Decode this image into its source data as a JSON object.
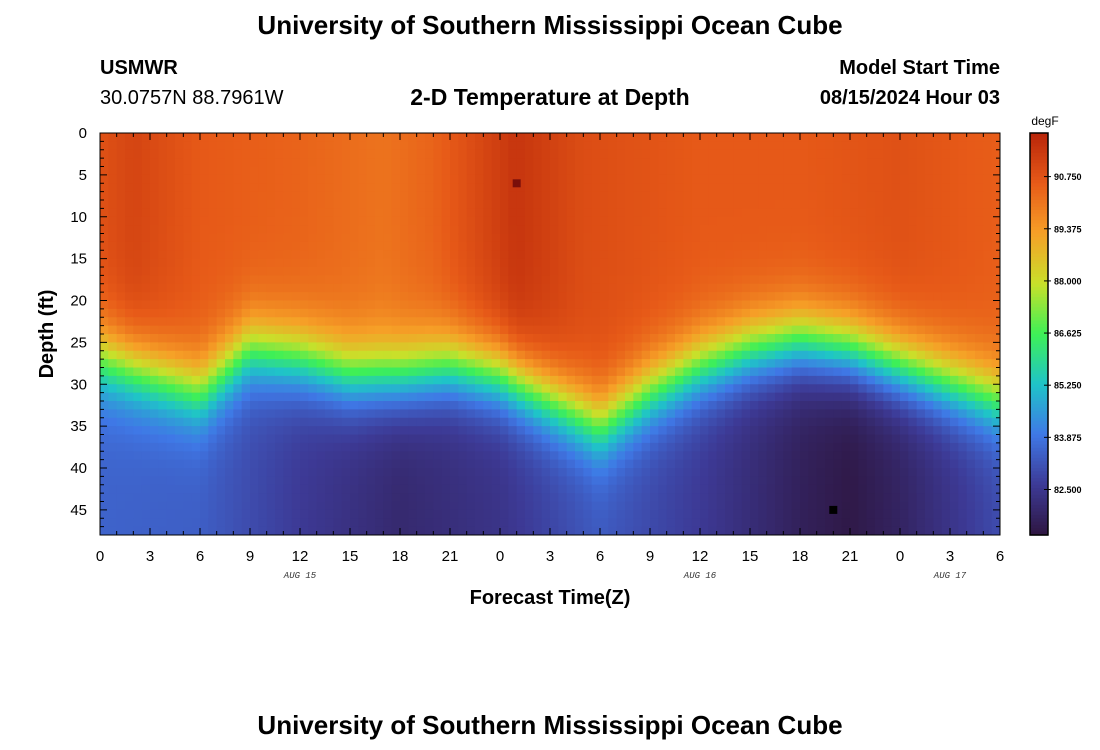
{
  "page": {
    "title_top": "University of Southern Mississippi Ocean Cube",
    "title_bottom": "University of Southern Mississippi Ocean Cube",
    "station": "USMWR",
    "coords": "30.0757N  88.7961W",
    "plot_title": "2-D Temperature at Depth",
    "model_start_label": "Model Start Time",
    "model_start_value": "08/15/2024 Hour 03"
  },
  "colors": {
    "text": "#000000",
    "background": "#ffffff"
  },
  "chart_data": {
    "type": "heatmap",
    "title": "2-D Temperature at Depth",
    "xlabel": "Forecast Time(Z)",
    "ylabel": "Depth (ft)",
    "x_ticks": [
      "0",
      "3",
      "6",
      "9",
      "12",
      "15",
      "18",
      "21",
      "0",
      "3",
      "6",
      "9",
      "12",
      "15",
      "18",
      "21",
      "0",
      "3",
      "6"
    ],
    "x_range_hours": [
      0,
      54
    ],
    "date_labels": [
      {
        "text": "AUG 15",
        "hour": 12
      },
      {
        "text": "AUG 16",
        "hour": 36
      },
      {
        "text": "AUG 17",
        "hour": 51
      }
    ],
    "y_ticks": [
      "0",
      "5",
      "10",
      "15",
      "20",
      "25",
      "30",
      "35",
      "40",
      "45"
    ],
    "y_range_ft": [
      0,
      48
    ],
    "colorbar": {
      "unit": "degF",
      "ticks": [
        "90.750",
        "89.375",
        "88.000",
        "86.625",
        "85.250",
        "83.875",
        "82.500"
      ],
      "range": [
        81.3,
        91.9
      ],
      "colors": [
        "#2e1641",
        "#3d3a96",
        "#3f78e6",
        "#1fc4c8",
        "#3ef056",
        "#c9e02a",
        "#f6a027",
        "#e75a18",
        "#b8250a"
      ]
    },
    "thermocline_depth_ft": [
      {
        "hour": 0,
        "depth": 27
      },
      {
        "hour": 3,
        "depth": 29
      },
      {
        "hour": 6,
        "depth": 31
      },
      {
        "hour": 9,
        "depth": 26
      },
      {
        "hour": 12,
        "depth": 27
      },
      {
        "hour": 15,
        "depth": 29
      },
      {
        "hour": 18,
        "depth": 29
      },
      {
        "hour": 21,
        "depth": 28
      },
      {
        "hour": 24,
        "depth": 29
      },
      {
        "hour": 27,
        "depth": 32
      },
      {
        "hour": 30,
        "depth": 35
      },
      {
        "hour": 33,
        "depth": 31
      },
      {
        "hour": 36,
        "depth": 28
      },
      {
        "hour": 39,
        "depth": 26
      },
      {
        "hour": 42,
        "depth": 25
      },
      {
        "hour": 45,
        "depth": 26
      },
      {
        "hour": 48,
        "depth": 28
      },
      {
        "hour": 51,
        "depth": 30
      },
      {
        "hour": 54,
        "depth": 32
      }
    ],
    "surface_temp_degF": [
      {
        "hour": 0,
        "temp": 90.8
      },
      {
        "hour": 2,
        "temp": 91.1
      },
      {
        "hour": 6,
        "temp": 90.6
      },
      {
        "hour": 12,
        "temp": 90.4
      },
      {
        "hour": 17,
        "temp": 90.1
      },
      {
        "hour": 20,
        "temp": 90.4
      },
      {
        "hour": 25,
        "temp": 91.5
      },
      {
        "hour": 29,
        "temp": 90.9
      },
      {
        "hour": 36,
        "temp": 90.6
      },
      {
        "hour": 42,
        "temp": 90.6
      },
      {
        "hour": 48,
        "temp": 90.8
      },
      {
        "hour": 54,
        "temp": 90.5
      }
    ],
    "bottom_temp_degF": [
      {
        "hour": 0,
        "temp": 83.5
      },
      {
        "hour": 6,
        "temp": 83.4
      },
      {
        "hour": 12,
        "temp": 82.6
      },
      {
        "hour": 18,
        "temp": 82.0
      },
      {
        "hour": 24,
        "temp": 82.4
      },
      {
        "hour": 30,
        "temp": 83.3
      },
      {
        "hour": 36,
        "temp": 82.6
      },
      {
        "hour": 42,
        "temp": 81.7
      },
      {
        "hour": 45,
        "temp": 81.4
      },
      {
        "hour": 48,
        "temp": 81.8
      },
      {
        "hour": 54,
        "temp": 83.0
      }
    ],
    "markers": [
      {
        "hour": 25,
        "depth": 6,
        "color": "#7a0f0a"
      },
      {
        "hour": 44,
        "depth": 45,
        "color": "#000000"
      }
    ]
  }
}
